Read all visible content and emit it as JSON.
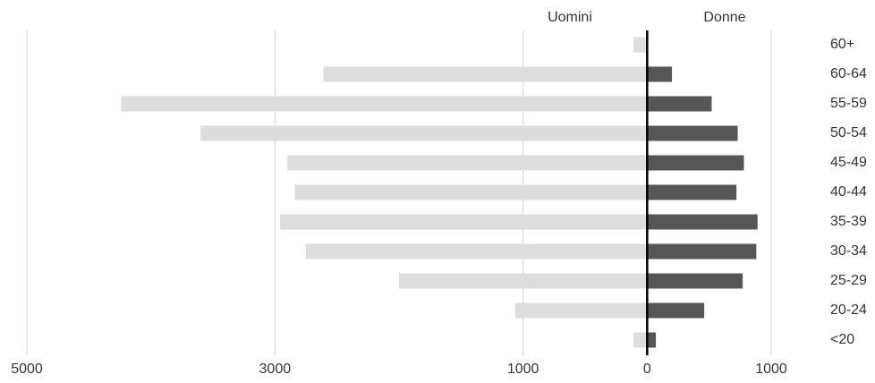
{
  "chart_data": {
    "type": "bar",
    "orientation": "horizontal",
    "categories": [
      "60+",
      "60-64",
      "55-59",
      "50-54",
      "45-49",
      "40-44",
      "35-39",
      "30-34",
      "25-29",
      "20-24",
      "<20"
    ],
    "series": [
      {
        "name": "Uomini",
        "color": "#dcdddc",
        "values": [
          -110,
          -2610,
          -4240,
          -3600,
          -2900,
          -2840,
          -2960,
          -2750,
          -2000,
          -1065,
          -110
        ]
      },
      {
        "name": "Donne",
        "color": "#555655",
        "values": [
          0,
          200,
          520,
          730,
          780,
          720,
          890,
          880,
          770,
          460,
          70
        ]
      }
    ],
    "xlim": [
      -5000,
      1000
    ],
    "xticks": [
      {
        "value": -5000,
        "label": "5000"
      },
      {
        "value": -3000,
        "label": "3000"
      },
      {
        "value": -1000,
        "label": "1000"
      },
      0,
      1000
    ],
    "grid": true
  }
}
